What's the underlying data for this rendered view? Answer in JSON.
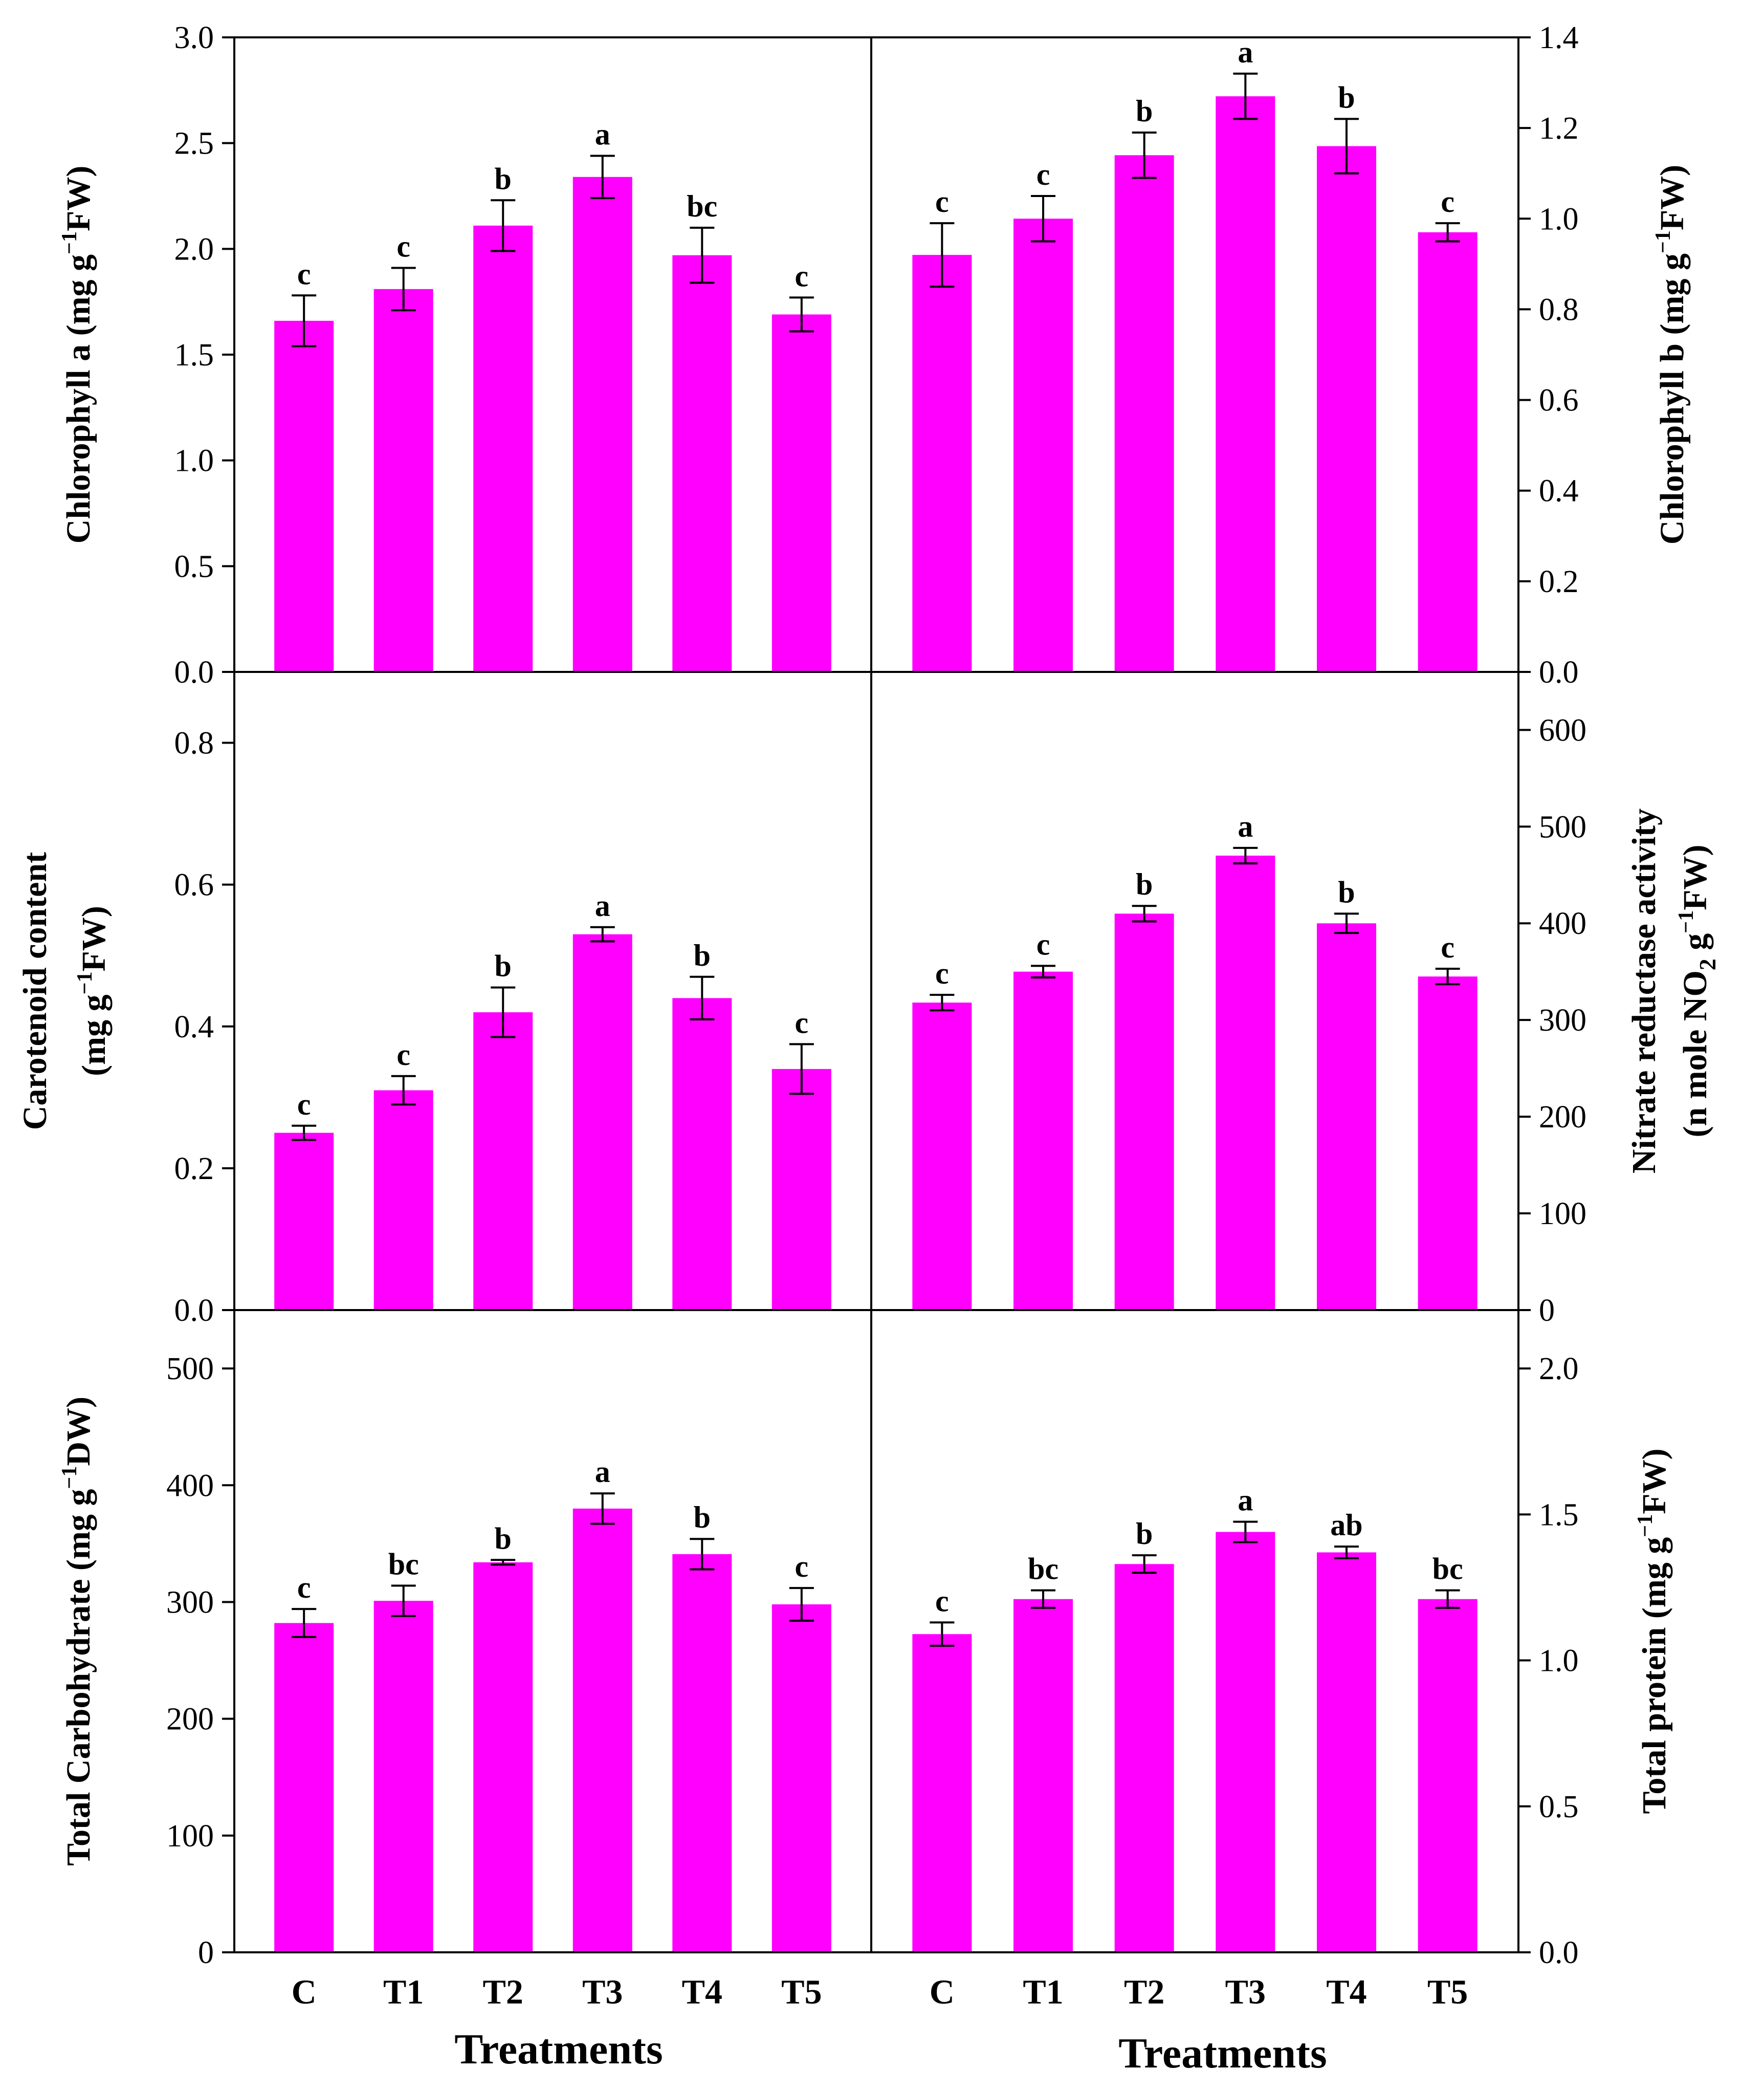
{
  "chart_data": [
    {
      "type": "bar",
      "position": "top-left",
      "ylabel": "Chlorophyll a (mg g<sup>-1</sup>FW)",
      "ylabel_parts": [
        "Chlorophyll a (mg g",
        "−1",
        "FW)"
      ],
      "ylim": [
        0,
        3.0
      ],
      "yticks": [
        "0.0",
        "0.5",
        "1.0",
        "1.5",
        "2.0",
        "2.5",
        "3.0"
      ],
      "categories": [
        "C",
        "T1",
        "T2",
        "T3",
        "T4",
        "T5"
      ],
      "values": [
        1.66,
        1.81,
        2.11,
        2.34,
        1.97,
        1.69
      ],
      "errors": [
        0.12,
        0.1,
        0.12,
        0.1,
        0.13,
        0.08
      ],
      "significance": [
        "c",
        "c",
        "b",
        "a",
        "bc",
        "c"
      ]
    },
    {
      "type": "bar",
      "position": "top-right",
      "ylabel_parts": [
        "Chlorophyll b (mg g",
        "−1",
        "FW)"
      ],
      "ylim": [
        0,
        1.4
      ],
      "yticks": [
        "0.0",
        "0.2",
        "0.4",
        "0.6",
        "0.8",
        "1.0",
        "1.2",
        "1.4"
      ],
      "categories": [
        "C",
        "T1",
        "T2",
        "T3",
        "T4",
        "T5"
      ],
      "values": [
        0.92,
        1.0,
        1.14,
        1.27,
        1.16,
        0.97
      ],
      "errors": [
        0.07,
        0.05,
        0.05,
        0.05,
        0.06,
        0.02
      ],
      "significance": [
        "c",
        "c",
        "b",
        "a",
        "b",
        "c"
      ]
    },
    {
      "type": "bar",
      "position": "middle-left",
      "ylabel_line1": "Carotenoid content",
      "ylabel_parts": [
        "(mg g",
        "−1",
        "FW)"
      ],
      "ylim": [
        0,
        0.9
      ],
      "yticks": [
        "0.0",
        "0.2",
        "0.4",
        "0.6",
        "0.8"
      ],
      "categories": [
        "C",
        "T1",
        "T2",
        "T3",
        "T4",
        "T5"
      ],
      "values": [
        0.25,
        0.31,
        0.42,
        0.53,
        0.44,
        0.34
      ],
      "errors": [
        0.01,
        0.02,
        0.035,
        0.01,
        0.03,
        0.035
      ],
      "significance": [
        "c",
        "c",
        "b",
        "a",
        "b",
        "c"
      ]
    },
    {
      "type": "bar",
      "position": "middle-right",
      "ylabel_line1": "Nitrate reductase activity",
      "ylabel_parts": [
        "(n mole NO",
        "2",
        " g",
        "−1",
        "FW)"
      ],
      "ylim": [
        0,
        660
      ],
      "yticks": [
        "0",
        "100",
        "200",
        "300",
        "400",
        "500",
        "600"
      ],
      "categories": [
        "C",
        "T1",
        "T2",
        "T3",
        "T4",
        "T5"
      ],
      "values": [
        318,
        350,
        410,
        470,
        400,
        345
      ],
      "errors": [
        8,
        6,
        8,
        8,
        10,
        8
      ],
      "significance": [
        "c",
        "c",
        "b",
        "a",
        "b",
        "c"
      ]
    },
    {
      "type": "bar",
      "position": "bottom-left",
      "ylabel_parts": [
        "Total Carbohydrate (mg g",
        "−1",
        "DW)"
      ],
      "ylim": [
        0,
        550
      ],
      "yticks": [
        "0",
        "100",
        "200",
        "300",
        "400",
        "500"
      ],
      "categories": [
        "C",
        "T1",
        "T2",
        "T3",
        "T4",
        "T5"
      ],
      "values": [
        282,
        301,
        334,
        380,
        341,
        298
      ],
      "errors": [
        12,
        13,
        2,
        13,
        13,
        14
      ],
      "significance": [
        "c",
        "bc",
        "b",
        "a",
        "b",
        "c"
      ]
    },
    {
      "type": "bar",
      "position": "bottom-right",
      "ylabel_parts": [
        "Total protein (mg g",
        "−1",
        "FW)"
      ],
      "ylim": [
        0,
        2.2
      ],
      "yticks": [
        "0.0",
        "0.5",
        "1.0",
        "1.5",
        "2.0"
      ],
      "categories": [
        "C",
        "T1",
        "T2",
        "T3",
        "T4",
        "T5"
      ],
      "values": [
        1.09,
        1.21,
        1.33,
        1.44,
        1.37,
        1.21
      ],
      "errors": [
        0.04,
        0.03,
        0.03,
        0.035,
        0.02,
        0.03
      ],
      "significance": [
        "c",
        "bc",
        "b",
        "a",
        "ab",
        "bc"
      ]
    }
  ],
  "xaxis_title": "Treatments",
  "bar_color": "#ff00ff"
}
